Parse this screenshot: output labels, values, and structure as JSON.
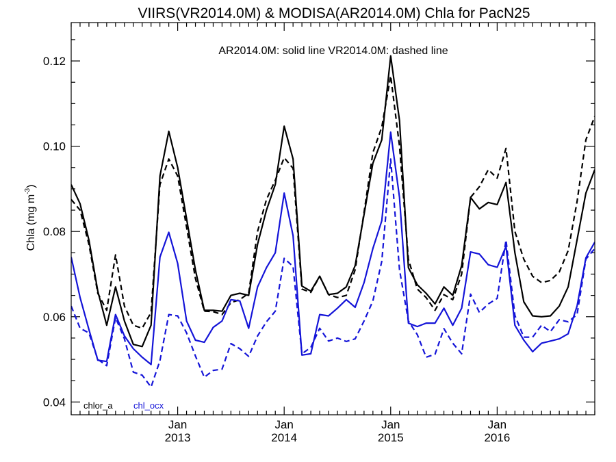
{
  "chart_data": {
    "type": "line",
    "title": "VIIRS(VR2014.0M) & MODISA(AR2014.0M)  Chla for PacN25",
    "annotation": "AR2014.0M: solid line   VR2014.0M: dashed line",
    "ylabel_main": "Chla (mg m",
    "ylabel_sup": "-3",
    "ylabel_close": ")",
    "ylim": [
      0.037,
      0.129
    ],
    "xlim": [
      "2012-01",
      "2016-12"
    ],
    "y_ticks": [
      {
        "value": 0.04,
        "label": "0.04"
      },
      {
        "value": 0.06,
        "label": "0.06"
      },
      {
        "value": 0.08,
        "label": "0.08"
      },
      {
        "value": 0.1,
        "label": "0.10"
      },
      {
        "value": 0.12,
        "label": "0.12"
      }
    ],
    "x_ticks": [
      {
        "month": "2013-01",
        "label": "Jan",
        "year": "2013"
      },
      {
        "month": "2014-01",
        "label": "Jan",
        "year": "2014"
      },
      {
        "month": "2015-01",
        "label": "Jan",
        "year": "2015"
      },
      {
        "month": "2016-01",
        "label": "Jan",
        "year": "2016"
      }
    ],
    "legend": {
      "chlor_a": "chlor_a",
      "chl_ocx": "chl_ocx",
      "placement": "bottom-left"
    },
    "colors": {
      "chlor_a": "#000000",
      "chl_ocx": "#1414d8"
    },
    "months": [
      "2012-01",
      "2012-02",
      "2012-03",
      "2012-04",
      "2012-05",
      "2012-06",
      "2012-07",
      "2012-08",
      "2012-09",
      "2012-10",
      "2012-11",
      "2012-12",
      "2013-01",
      "2013-02",
      "2013-03",
      "2013-04",
      "2013-05",
      "2013-06",
      "2013-07",
      "2013-08",
      "2013-09",
      "2013-10",
      "2013-11",
      "2013-12",
      "2014-01",
      "2014-02",
      "2014-03",
      "2014-04",
      "2014-05",
      "2014-06",
      "2014-07",
      "2014-08",
      "2014-09",
      "2014-10",
      "2014-11",
      "2014-12",
      "2015-01",
      "2015-02",
      "2015-03",
      "2015-04",
      "2015-05",
      "2015-06",
      "2015-07",
      "2015-08",
      "2015-09",
      "2015-10",
      "2015-11",
      "2015-12",
      "2016-01",
      "2016-02",
      "2016-03",
      "2016-04",
      "2016-05",
      "2016-06",
      "2016-07",
      "2016-08",
      "2016-09",
      "2016-10",
      "2016-11",
      "2016-12"
    ],
    "series": [
      {
        "product": "chlor_a",
        "sensor": "AR2014.0M",
        "style": "solid",
        "color": "#000000",
        "values": [
          0.091,
          0.0865,
          0.078,
          0.066,
          0.058,
          0.067,
          0.059,
          0.0535,
          0.053,
          0.058,
          0.093,
          0.1035,
          0.095,
          0.083,
          0.071,
          0.0615,
          0.0615,
          0.0613,
          0.065,
          0.0655,
          0.065,
          0.077,
          0.085,
          0.091,
          0.1047,
          0.097,
          0.0672,
          0.066,
          0.0695,
          0.0652,
          0.0655,
          0.067,
          0.072,
          0.084,
          0.096,
          0.1015,
          0.1212,
          0.106,
          0.0715,
          0.0675,
          0.0655,
          0.063,
          0.067,
          0.065,
          0.072,
          0.088,
          0.0853,
          0.0868,
          0.0863,
          0.0915,
          0.075,
          0.0635,
          0.0602,
          0.06,
          0.0602,
          0.0625,
          0.067,
          0.078,
          0.089,
          0.0945
        ]
      },
      {
        "product": "chlor_a",
        "sensor": "VR2014.0M",
        "style": "dashed",
        "color": "#000000",
        "values": [
          0.0875,
          0.085,
          0.077,
          0.0655,
          0.0615,
          0.0745,
          0.0625,
          0.058,
          0.0573,
          0.061,
          0.091,
          0.097,
          0.093,
          0.081,
          0.069,
          0.0613,
          0.0612,
          0.0605,
          0.0633,
          0.064,
          0.0655,
          0.08,
          0.0875,
          0.092,
          0.0973,
          0.0948,
          0.0665,
          0.0657,
          0.0695,
          0.0652,
          0.0645,
          0.065,
          0.071,
          0.0845,
          0.0985,
          0.1045,
          0.1165,
          0.1,
          0.0735,
          0.0665,
          0.0645,
          0.0615,
          0.0652,
          0.064,
          0.07,
          0.088,
          0.0905,
          0.0945,
          0.0925,
          0.0995,
          0.08,
          0.0735,
          0.0695,
          0.068,
          0.0685,
          0.0705,
          0.0755,
          0.087,
          0.1015,
          0.107
        ]
      },
      {
        "product": "chl_ocx",
        "sensor": "AR2014.0M",
        "style": "solid",
        "color": "#1414d8",
        "values": [
          0.074,
          0.0645,
          0.057,
          0.0498,
          0.0495,
          0.0605,
          0.0555,
          0.0525,
          0.0505,
          0.0488,
          0.074,
          0.0798,
          0.0725,
          0.059,
          0.0545,
          0.054,
          0.0575,
          0.059,
          0.064,
          0.0637,
          0.0573,
          0.067,
          0.0715,
          0.075,
          0.089,
          0.079,
          0.051,
          0.0513,
          0.0605,
          0.0602,
          0.062,
          0.064,
          0.0622,
          0.068,
          0.076,
          0.0825,
          0.1033,
          0.088,
          0.0585,
          0.0577,
          0.0585,
          0.0585,
          0.062,
          0.058,
          0.062,
          0.0752,
          0.0747,
          0.0722,
          0.0716,
          0.0765,
          0.058,
          0.0545,
          0.0518,
          0.0538,
          0.0543,
          0.0548,
          0.056,
          0.0625,
          0.0738,
          0.0775
        ]
      },
      {
        "product": "chl_ocx",
        "sensor": "VR2014.0M",
        "style": "dashed",
        "color": "#1414d8",
        "values": [
          0.0625,
          0.0573,
          0.0562,
          0.05,
          0.0485,
          0.0598,
          0.0548,
          0.047,
          0.0463,
          0.0435,
          0.0497,
          0.0605,
          0.0602,
          0.0562,
          0.0508,
          0.0458,
          0.0474,
          0.0477,
          0.0537,
          0.0525,
          0.0507,
          0.0555,
          0.0588,
          0.0613,
          0.0737,
          0.0718,
          0.0513,
          0.0528,
          0.0573,
          0.0543,
          0.055,
          0.0542,
          0.0548,
          0.059,
          0.0637,
          0.073,
          0.097,
          0.071,
          0.059,
          0.0558,
          0.0505,
          0.0512,
          0.0572,
          0.0538,
          0.0513,
          0.0653,
          0.061,
          0.063,
          0.0643,
          0.078,
          0.0603,
          0.0552,
          0.0552,
          0.058,
          0.0565,
          0.0593,
          0.0588,
          0.0605,
          0.0735,
          0.076
        ]
      }
    ]
  }
}
